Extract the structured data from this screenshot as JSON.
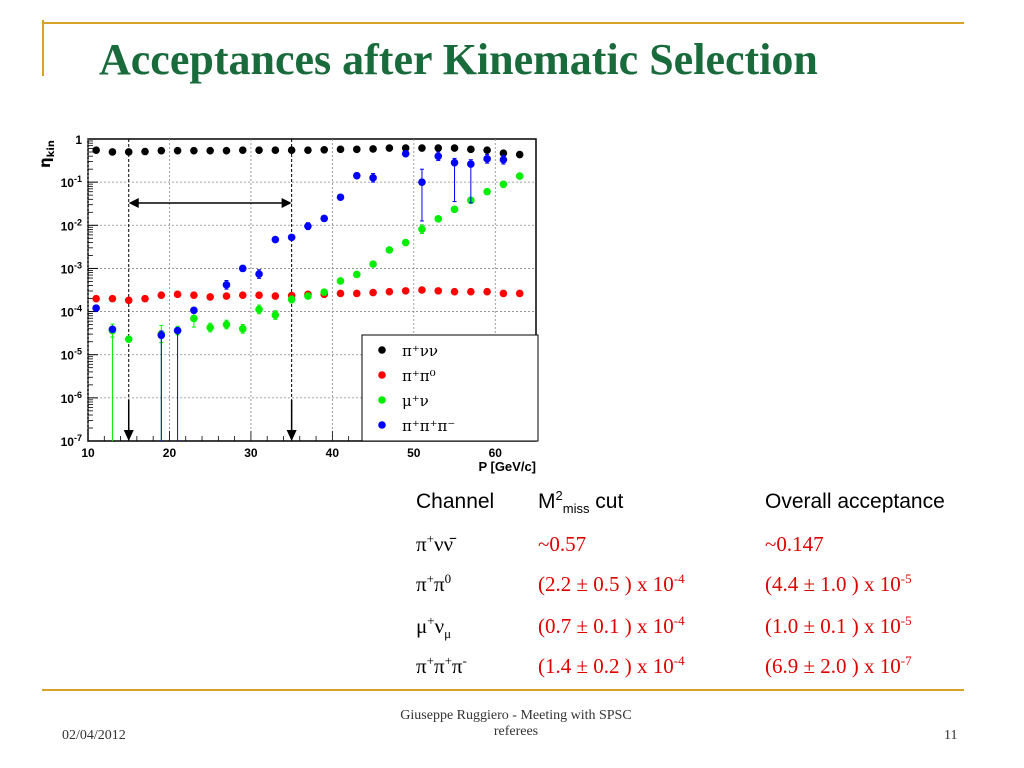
{
  "slide": {
    "title": "Acceptances after Kinematic Selection",
    "footer": {
      "date": "02/04/2012",
      "center_line1": "Giuseppe Ruggiero - Meeting with SPSC",
      "center_line2": "referees",
      "page": "11"
    },
    "accent_color": "#d6a227",
    "title_color": "#1a6b3c"
  },
  "table": {
    "headers": {
      "channel": "Channel",
      "cut_main": "M",
      "cut_sup": "2",
      "cut_sub": "miss",
      "cut_rest": " cut",
      "overall": "Overall acceptance"
    },
    "rows": [
      {
        "ch_base": "π",
        "ch_sup1": "+",
        "ch_rest": "νν̄",
        "ch_sup2": "",
        "ch_sub": "",
        "cut_val": "~0.57",
        "cut_exp": "",
        "acc_val": "~0.147",
        "acc_exp": ""
      },
      {
        "ch_base": "π",
        "ch_sup1": "+",
        "ch_rest": "π",
        "ch_sup2": "0",
        "ch_sub": "",
        "cut_val": "(2.2 ± 0.5 ) x 10",
        "cut_exp": "-4",
        "acc_val": "(4.4 ± 1.0 ) x 10",
        "acc_exp": "-5"
      },
      {
        "ch_base": "μ",
        "ch_sup1": "+",
        "ch_rest": "ν",
        "ch_sup2": "",
        "ch_sub": "μ",
        "cut_val": "(0.7 ± 0.1 ) x 10",
        "cut_exp": "-4",
        "acc_val": "(1.0 ± 0.1 ) x 10",
        "acc_exp": "-5"
      },
      {
        "ch_base": "π",
        "ch_sup1": "+",
        "ch_rest": "π",
        "ch_sup2": "+",
        "ch_sub": "",
        "ch_rest2": "π",
        "ch_sup3": "-",
        "cut_val": "(1.4 ± 0.2 ) x 10",
        "cut_exp": "-4",
        "acc_val": "(6.9 ± 2.0 ) x 10",
        "acc_exp": "-7"
      }
    ],
    "value_color": "#e00000"
  },
  "chart_data": {
    "type": "scatter",
    "title": "",
    "xlabel": "P [GeV/c]",
    "ylabel": "η_kin",
    "xlim": [
      10,
      65
    ],
    "ylim_exp": [
      -7,
      0
    ],
    "yscale": "log",
    "grid": true,
    "x_ticks": [
      "10",
      "20",
      "30",
      "40",
      "50",
      "60"
    ],
    "y_ticks": [
      "1",
      "10^-1",
      "10^-2",
      "10^-3",
      "10^-4",
      "10^-5",
      "10^-6",
      "10^-7"
    ],
    "legend_position": "bottom-right",
    "selection_window": {
      "from": 15,
      "to": 35
    },
    "series": [
      {
        "name": "π⁺νν",
        "color": "#000000",
        "x": [
          11,
          13,
          15,
          17,
          19,
          21,
          23,
          25,
          27,
          29,
          31,
          33,
          35,
          37,
          39,
          41,
          43,
          45,
          47,
          49,
          51,
          53,
          55,
          57,
          59,
          61,
          63
        ],
        "logy": [
          -0.26,
          -0.3,
          -0.3,
          -0.29,
          -0.27,
          -0.27,
          -0.27,
          -0.27,
          -0.27,
          -0.26,
          -0.26,
          -0.26,
          -0.26,
          -0.26,
          -0.25,
          -0.24,
          -0.24,
          -0.23,
          -0.21,
          -0.21,
          -0.21,
          -0.21,
          -0.21,
          -0.24,
          -0.26,
          -0.33,
          -0.36
        ]
      },
      {
        "name": "π⁺π⁰",
        "color": "#ff0000",
        "x": [
          11,
          13,
          15,
          17,
          19,
          21,
          23,
          25,
          27,
          29,
          31,
          33,
          35,
          37,
          39,
          41,
          43,
          45,
          47,
          49,
          51,
          53,
          55,
          57,
          59,
          61,
          63
        ],
        "logy": [
          -3.7,
          -3.7,
          -3.74,
          -3.7,
          -3.62,
          -3.6,
          -3.62,
          -3.66,
          -3.64,
          -3.62,
          -3.62,
          -3.64,
          -3.63,
          -3.6,
          -3.6,
          -3.58,
          -3.58,
          -3.56,
          -3.54,
          -3.52,
          -3.5,
          -3.52,
          -3.54,
          -3.54,
          -3.54,
          -3.58,
          -3.58
        ]
      },
      {
        "name": "μ⁺ν",
        "color": "#00ee00",
        "x": [
          13,
          15,
          19,
          21,
          23,
          25,
          27,
          29,
          31,
          33,
          35,
          37,
          39,
          41,
          43,
          45,
          47,
          49,
          51,
          53,
          55,
          57,
          59,
          61,
          63
        ],
        "logy": [
          -4.44,
          -4.64,
          -4.52,
          -4.44,
          -4.16,
          -4.37,
          -4.3,
          -4.4,
          -3.95,
          -4.08,
          -3.72,
          -3.64,
          -3.55,
          -3.29,
          -3.14,
          -2.9,
          -2.57,
          -2.4,
          -2.09,
          -1.85,
          -1.63,
          -1.42,
          -1.22,
          -1.05,
          -0.86
        ],
        "err": [
          0.15,
          0,
          0.2,
          0.1,
          0.2,
          0.1,
          0.1,
          0.1,
          0.1,
          0.1,
          0.08,
          0.05,
          0.05,
          0,
          0,
          0,
          0,
          0,
          0.1,
          0,
          0,
          0,
          0,
          0,
          0
        ],
        "drop_to_floor": [
          13,
          19
        ]
      },
      {
        "name": "π⁺π⁺π⁻",
        "color": "#0000ff",
        "x": [
          11,
          13,
          19,
          21,
          23,
          27,
          29,
          31,
          33,
          35,
          37,
          39,
          41,
          43,
          45,
          49,
          51,
          53,
          55,
          57,
          59,
          61
        ],
        "logy": [
          -3.92,
          -4.41,
          -4.55,
          -4.44,
          -3.97,
          -3.38,
          -3.0,
          -3.13,
          -2.33,
          -2.28,
          -2.02,
          -1.84,
          -1.35,
          -0.85,
          -0.9,
          -0.34,
          -1.0,
          -0.4,
          -0.55,
          -0.58,
          -0.46,
          -0.48
        ],
        "err_up": [
          0,
          0,
          0.1,
          0,
          0,
          0.1,
          0.07,
          0.1,
          0.05,
          0.05,
          0.08,
          0.06,
          0.06,
          0.05,
          0.1,
          0.05,
          0.3,
          0.1,
          0.1,
          0.1,
          0.1,
          0.1
        ],
        "err_dn": [
          0,
          0,
          0,
          0,
          0,
          0.1,
          0.07,
          0.1,
          0.05,
          0.05,
          0.08,
          0.06,
          0.06,
          0.05,
          0.1,
          0.05,
          0.9,
          0.1,
          0.9,
          0.9,
          0.1,
          0.1
        ],
        "drop_to_floor": [
          19,
          21
        ]
      }
    ]
  }
}
